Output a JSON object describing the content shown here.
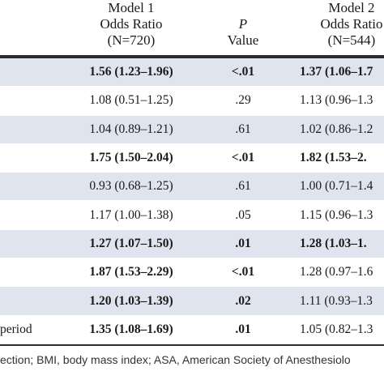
{
  "header": {
    "model1": [
      "Model 1",
      "Odds Ratio",
      "(N=720)"
    ],
    "p_value": [
      "P",
      "Value"
    ],
    "model2": [
      "Model 2",
      "Odds Ratio",
      "(N=544)"
    ]
  },
  "rows": [
    {
      "label": "",
      "m1": "1.56 (1.23–1.96)",
      "m1_bold": true,
      "p": "<.01",
      "p_bold": true,
      "m2": "1.37 (1.06–1.7",
      "m2_bold": true
    },
    {
      "label": "",
      "m1": "1.08 (0.51–1.25)",
      "m1_bold": false,
      "p": ".29",
      "p_bold": false,
      "m2": "1.13 (0.96–1.3",
      "m2_bold": false
    },
    {
      "label": "",
      "m1": "1.04 (0.89–1.21)",
      "m1_bold": false,
      "p": ".61",
      "p_bold": false,
      "m2": "1.02 (0.86–1.2",
      "m2_bold": false
    },
    {
      "label": "",
      "m1": "1.75 (1.50–2.04)",
      "m1_bold": true,
      "p": "<.01",
      "p_bold": true,
      "m2": "1.82 (1.53–2.",
      "m2_bold": true
    },
    {
      "label": "",
      "m1": "0.93 (0.68–1.25)",
      "m1_bold": false,
      "p": ".61",
      "p_bold": false,
      "m2": "1.00 (0.71–1.4",
      "m2_bold": false
    },
    {
      "label": "",
      "m1": "1.17 (1.00–1.38)",
      "m1_bold": false,
      "p": ".05",
      "p_bold": false,
      "m2": "1.15 (0.96–1.3",
      "m2_bold": false
    },
    {
      "label": "",
      "m1": "1.27 (1.07–1.50)",
      "m1_bold": true,
      "p": ".01",
      "p_bold": true,
      "m2": "1.28 (1.03–1.",
      "m2_bold": true
    },
    {
      "label": "",
      "m1": "1.87 (1.53–2.29)",
      "m1_bold": true,
      "p": "<.01",
      "p_bold": true,
      "m2": "1.28 (0.97–1.6",
      "m2_bold": false
    },
    {
      "label": "",
      "m1": "1.20 (1.03–1.39)",
      "m1_bold": true,
      "p": ".02",
      "p_bold": true,
      "m2": "1.11 (0.93–1.3",
      "m2_bold": false
    },
    {
      "label": "period",
      "m1": "1.35 (1.08–1.69)",
      "m1_bold": true,
      "p": ".01",
      "p_bold": true,
      "m2": "1.05 (0.82–1.3",
      "m2_bold": false
    }
  ],
  "footnote": "ection; BMI, body mass index; ASA, American Society of Anesthesiolo"
}
